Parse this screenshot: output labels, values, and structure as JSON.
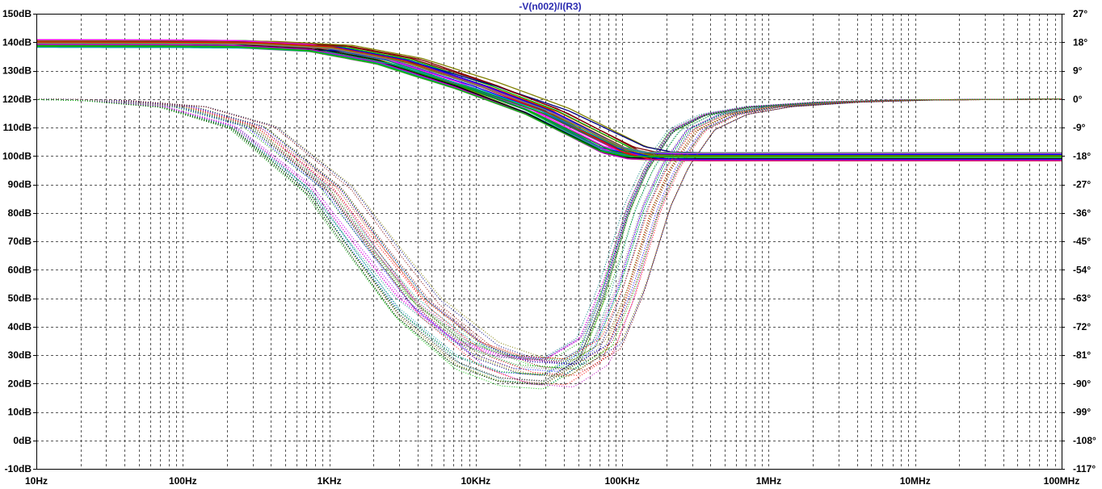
{
  "chart_data": {
    "type": "line",
    "title": "-V(n002)/I(R3)",
    "x_axis": {
      "scale": "log",
      "range_hz": [
        10,
        100000000
      ],
      "tick_values": [
        10,
        100,
        1000,
        10000,
        100000,
        1000000,
        10000000,
        100000000
      ],
      "tick_labels": [
        "10Hz",
        "100Hz",
        "1KHz",
        "10KHz",
        "100KHz",
        "1MHz",
        "10MHz",
        "100MHz"
      ]
    },
    "y_left": {
      "unit": "dB",
      "range": [
        -10,
        150
      ],
      "tick_values": [
        150,
        140,
        130,
        120,
        110,
        100,
        90,
        80,
        70,
        60,
        50,
        40,
        30,
        20,
        10,
        0,
        -10
      ],
      "tick_labels": [
        "150dB",
        "140dB",
        "130dB",
        "120dB",
        "110dB",
        "100dB",
        "90dB",
        "80dB",
        "70dB",
        "60dB",
        "50dB",
        "40dB",
        "30dB",
        "20dB",
        "10dB",
        "0dB",
        "-10dB"
      ]
    },
    "y_right": {
      "unit": "degrees",
      "range": [
        -117,
        27
      ],
      "tick_values": [
        27,
        18,
        9,
        0,
        -9,
        -18,
        -27,
        -36,
        -45,
        -54,
        -63,
        -72,
        -81,
        -90,
        -99,
        -108,
        -117
      ],
      "tick_labels": [
        "27°",
        "18°",
        "9°",
        "0°",
        "-9°",
        "-18°",
        "-27°",
        "-36°",
        "-45°",
        "-54°",
        "-63°",
        "-72°",
        "-81°",
        "-90°",
        "-99°",
        "-108°",
        "-117°"
      ]
    },
    "grid": true,
    "monte_carlo_runs": 36,
    "run_colors": [
      "#00a000",
      "#0000ff",
      "#ff0000",
      "#00a0a0",
      "#c000c0",
      "#808000",
      "#808080",
      "#00c000",
      "#000080",
      "#800000",
      "#008080",
      "#ff00ff",
      "#804000",
      "#000000"
    ],
    "magnitude_trace": {
      "style": "solid",
      "nominal": {
        "freq_hz": [
          10,
          100,
          300,
          1000,
          3000,
          10000,
          30000,
          70000,
          100000,
          150000,
          300000,
          1000000,
          10000000,
          100000000
        ],
        "db": [
          139.5,
          139.4,
          139.2,
          137.8,
          133.2,
          124.6,
          115.5,
          106.0,
          102.0,
          100.0,
          99.7,
          99.7,
          99.7,
          99.7
        ]
      },
      "low_freq_spread_db": [
        138,
        141
      ],
      "high_freq_spread_db": [
        98.3,
        101.2
      ]
    },
    "phase_trace": {
      "style": "dotted",
      "nominal": {
        "freq_hz": [
          10,
          30,
          100,
          300,
          1000,
          2000,
          4000,
          10000,
          20000,
          40000,
          70000,
          100000,
          150000,
          200000,
          300000,
          500000,
          1000000,
          3000000,
          10000000,
          100000000
        ],
        "deg": [
          0,
          -0.5,
          -2.5,
          -9,
          -29,
          -48,
          -66,
          -81,
          -86,
          -87,
          -80,
          -62,
          -35,
          -22,
          -10,
          -5,
          -2.5,
          -1,
          -0.3,
          0
        ]
      },
      "minimum_spread_deg": [
        -91,
        -80
      ]
    }
  }
}
